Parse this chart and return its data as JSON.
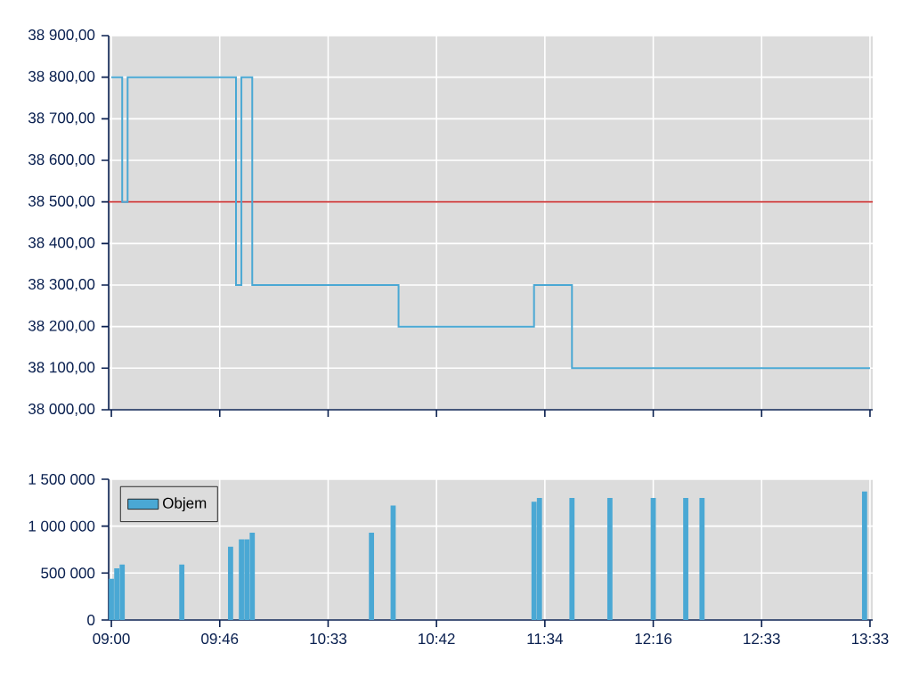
{
  "chart_data": [
    {
      "type": "step",
      "categories": [
        null,
        null,
        null,
        null,
        null,
        null,
        null,
        null,
        null,
        null,
        null,
        null,
        null,
        null,
        null,
        null,
        null,
        null,
        null,
        null,
        null,
        null,
        null,
        null,
        null,
        null,
        null,
        null,
        null,
        null,
        null,
        null,
        null,
        null,
        null,
        null,
        null,
        null,
        null,
        null,
        null,
        null,
        null,
        null,
        null,
        null,
        null,
        null,
        null,
        null,
        null,
        null,
        null,
        null,
        null,
        null,
        null,
        null,
        null,
        null,
        null,
        null,
        null,
        null,
        null,
        null,
        null,
        null,
        null,
        null,
        null,
        null,
        null,
        null,
        null,
        null,
        null,
        null,
        null,
        null,
        null,
        null,
        null,
        null,
        null,
        null,
        null,
        null,
        null,
        null,
        null,
        null,
        null,
        null,
        null,
        null,
        null,
        null,
        null,
        null,
        null,
        null,
        null,
        null,
        null,
        null,
        null,
        null,
        null,
        null,
        null,
        null,
        null,
        null,
        null,
        null,
        null,
        null,
        null,
        null,
        null,
        null,
        null,
        null,
        null,
        null,
        null,
        null,
        null,
        null,
        null,
        null,
        null,
        null,
        null,
        null,
        null,
        null,
        null,
        null,
        null
      ],
      "ylim": [
        38000,
        38900
      ],
      "yticks": [
        {
          "value": 38000,
          "label": "38 000,00"
        },
        {
          "value": 38100,
          "label": "38 100,00"
        },
        {
          "value": 38200,
          "label": "38 200,00"
        },
        {
          "value": 38300,
          "label": "38 300,00"
        },
        {
          "value": 38400,
          "label": "38 400,00"
        },
        {
          "value": 38500,
          "label": "38 500,00"
        },
        {
          "value": 38600,
          "label": "38 600,00"
        },
        {
          "value": 38700,
          "label": "38 700,00"
        },
        {
          "value": 38800,
          "label": "38 800,00"
        },
        {
          "value": 38900,
          "label": "38 900,00"
        }
      ],
      "grid": true,
      "ref_lines": [
        {
          "axis": "y",
          "value": 38500,
          "color": "#cc3333"
        }
      ],
      "series": [
        {
          "color": "#4aa8d4",
          "values": [
            38800,
            38800,
            38500,
            38800,
            38800,
            38800,
            38800,
            38800,
            38800,
            38800,
            38800,
            38800,
            38800,
            38800,
            38800,
            38800,
            38800,
            38800,
            38800,
            38800,
            38800,
            38800,
            38800,
            38300,
            38800,
            38800,
            38300,
            38300,
            38300,
            38300,
            38300,
            38300,
            38300,
            38300,
            38300,
            38300,
            38300,
            38300,
            38300,
            38300,
            38300,
            38300,
            38300,
            38300,
            38300,
            38300,
            38300,
            38300,
            38300,
            38300,
            38300,
            38300,
            38300,
            38200,
            38200,
            38200,
            38200,
            38200,
            38200,
            38200,
            38200,
            38200,
            38200,
            38200,
            38200,
            38200,
            38200,
            38200,
            38200,
            38200,
            38200,
            38200,
            38200,
            38200,
            38200,
            38200,
            38200,
            38200,
            38300,
            38300,
            38300,
            38300,
            38300,
            38300,
            38300,
            38100,
            38100,
            38100,
            38100,
            38100,
            38100,
            38100,
            38100,
            38100,
            38100,
            38100,
            38100,
            38100,
            38100,
            38100,
            38100,
            38100,
            38100,
            38100,
            38100,
            38100,
            38100,
            38100,
            38100,
            38100,
            38100,
            38100,
            38100,
            38100,
            38100,
            38100,
            38100,
            38100,
            38100,
            38100,
            38100,
            38100,
            38100,
            38100,
            38100,
            38100,
            38100,
            38100,
            38100,
            38100,
            38100,
            38100,
            38100,
            38100,
            38100,
            38100,
            38100,
            38100,
            38100,
            38100,
            38100
          ]
        }
      ]
    },
    {
      "type": "bar",
      "categories": [
        "09:00",
        null,
        null,
        null,
        null,
        null,
        null,
        null,
        null,
        null,
        null,
        null,
        null,
        null,
        null,
        null,
        null,
        null,
        null,
        null,
        "09:46",
        null,
        null,
        null,
        null,
        null,
        null,
        null,
        null,
        null,
        null,
        null,
        null,
        null,
        null,
        null,
        null,
        null,
        null,
        null,
        "10:33",
        null,
        null,
        null,
        null,
        null,
        null,
        null,
        null,
        null,
        null,
        null,
        null,
        null,
        null,
        null,
        null,
        null,
        null,
        null,
        "10:42",
        null,
        null,
        null,
        null,
        null,
        null,
        null,
        null,
        null,
        null,
        null,
        null,
        null,
        null,
        null,
        null,
        null,
        null,
        null,
        "11:34",
        null,
        null,
        null,
        null,
        null,
        null,
        null,
        null,
        null,
        null,
        null,
        null,
        null,
        null,
        null,
        null,
        null,
        null,
        null,
        "12:16",
        null,
        null,
        null,
        null,
        null,
        null,
        null,
        null,
        null,
        null,
        null,
        null,
        null,
        null,
        null,
        null,
        null,
        null,
        null,
        "12:33",
        null,
        null,
        null,
        null,
        null,
        null,
        null,
        null,
        null,
        null,
        null,
        null,
        null,
        null,
        null,
        null,
        null,
        null,
        null,
        "13:33"
      ],
      "ylim": [
        0,
        1500000
      ],
      "yticks": [
        {
          "value": 0,
          "label": "0"
        },
        {
          "value": 500000,
          "label": "500 000"
        },
        {
          "value": 1000000,
          "label": "1 000 000"
        },
        {
          "value": 1500000,
          "label": "1 500 000"
        }
      ],
      "grid": true,
      "legend": "top left",
      "series": [
        {
          "name": "Objem",
          "color": "#4aa8d4",
          "values": [
            440000,
            550000,
            590000,
            null,
            null,
            null,
            null,
            null,
            null,
            null,
            null,
            null,
            null,
            590000,
            null,
            null,
            null,
            null,
            null,
            null,
            null,
            null,
            780000,
            null,
            860000,
            860000,
            930000,
            null,
            null,
            null,
            null,
            null,
            null,
            null,
            null,
            null,
            null,
            null,
            null,
            null,
            null,
            null,
            null,
            null,
            null,
            null,
            null,
            null,
            930000,
            null,
            null,
            null,
            1220000,
            null,
            null,
            null,
            null,
            null,
            null,
            null,
            null,
            null,
            null,
            null,
            null,
            null,
            null,
            null,
            null,
            null,
            null,
            null,
            null,
            null,
            null,
            null,
            null,
            null,
            1260000,
            1300000,
            null,
            null,
            null,
            null,
            null,
            1300000,
            null,
            null,
            null,
            null,
            null,
            null,
            1300000,
            null,
            null,
            null,
            null,
            null,
            null,
            null,
            1300000,
            null,
            null,
            null,
            null,
            null,
            1300000,
            null,
            null,
            1300000,
            null,
            null,
            null,
            null,
            null,
            null,
            null,
            null,
            null,
            null,
            null,
            null,
            null,
            null,
            null,
            null,
            null,
            null,
            null,
            null,
            null,
            null,
            null,
            null,
            null,
            null,
            null,
            null,
            null,
            1370000,
            null
          ]
        }
      ]
    }
  ]
}
